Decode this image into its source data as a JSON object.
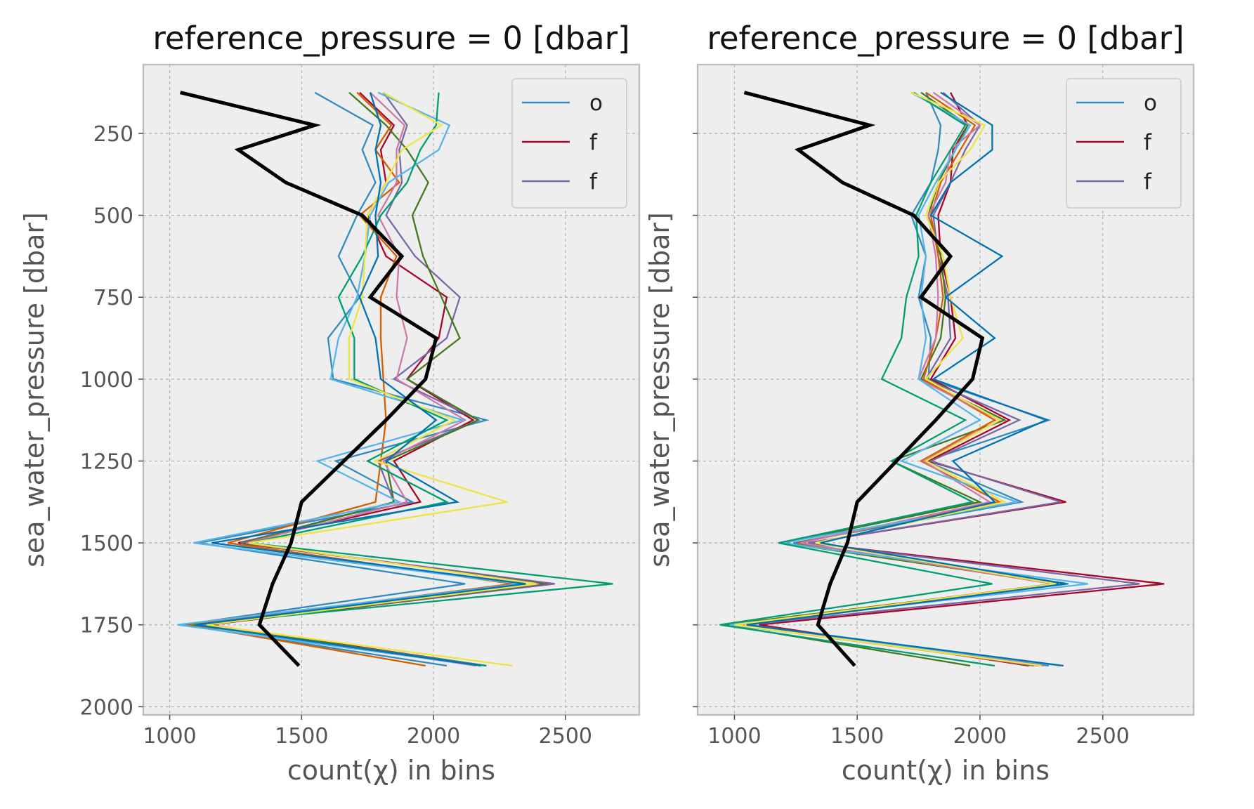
{
  "chart_data": [
    {
      "type": "line",
      "title": "reference_pressure = 0 [dbar]",
      "xlabel": "count(χ) in bins",
      "ylabel": "sea_water_pressure [dbar]",
      "xlim": [
        900,
        2780
      ],
      "ylim": [
        2025,
        40
      ],
      "y_inverted": true,
      "x_ticks": [
        1000,
        1500,
        2000,
        2500
      ],
      "y_ticks": [
        250,
        500,
        750,
        1000,
        1250,
        1500,
        1750,
        2000
      ],
      "y_tick_labels_visible": true,
      "grid": true,
      "legend_placement": "top-right",
      "legend": [
        {
          "label": "o",
          "color": "#348abd"
        },
        {
          "label": "f",
          "color": "#a60628"
        },
        {
          "label": "f",
          "color": "#7a68a6"
        }
      ],
      "y": [
        125,
        225,
        300,
        400,
        500,
        625,
        750,
        875,
        1000,
        1125,
        1250,
        1375,
        1500,
        1625,
        1750,
        1875
      ],
      "series": [
        {
          "color": "#348abd",
          "x": [
            1550,
            1770,
            1730,
            1780,
            1710,
            1640,
            1720,
            1600,
            1620,
            2200,
            1630,
            1920,
            1110,
            2120,
            1050,
            2050
          ]
        },
        {
          "color": "#a60628",
          "x": [
            1720,
            1850,
            1800,
            1820,
            1750,
            1820,
            2050,
            2020,
            1900,
            2150,
            1850,
            1950,
            1260,
            2450,
            1150,
            2200
          ]
        },
        {
          "color": "#7a68a6",
          "x": [
            1810,
            1900,
            1870,
            1880,
            1820,
            1930,
            2100,
            2050,
            1850,
            2170,
            1790,
            1850,
            1270,
            2460,
            1120,
            2200
          ]
        },
        {
          "color": "#467821",
          "x": [
            1680,
            1820,
            1900,
            1980,
            1920,
            1960,
            2030,
            2100,
            1900,
            2170,
            1820,
            1850,
            1280,
            2420,
            1140,
            2180
          ]
        },
        {
          "color": "#d55e00",
          "x": [
            1710,
            1840,
            1780,
            1870,
            1720,
            1860,
            1800,
            1800,
            1810,
            1820,
            1800,
            1780,
            1220,
            2300,
            1070,
            1970
          ]
        },
        {
          "color": "#cc79a7",
          "x": [
            1760,
            1890,
            1860,
            1860,
            1790,
            1870,
            1860,
            1900,
            1860,
            2120,
            1810,
            1900,
            1290,
            2400,
            1110,
            2160
          ]
        },
        {
          "color": "#56b4e9",
          "x": [
            1790,
            2060,
            2020,
            1830,
            1760,
            1740,
            1710,
            1640,
            1610,
            2110,
            1560,
            1870,
            1090,
            2330,
            1030,
            2180
          ]
        },
        {
          "color": "#009e73",
          "x": [
            2020,
            2010,
            1950,
            1900,
            1800,
            1730,
            1640,
            1700,
            1700,
            2050,
            1750,
            2050,
            1300,
            2680,
            1090,
            2200
          ]
        },
        {
          "color": "#f0e442",
          "x": [
            1810,
            2030,
            1880,
            1820,
            1750,
            1740,
            1730,
            1680,
            1680,
            2080,
            1780,
            2280,
            1300,
            2390,
            1140,
            2300
          ]
        },
        {
          "color": "#0072b2",
          "x": [
            1760,
            1800,
            1780,
            1800,
            1780,
            1790,
            1720,
            1780,
            1800,
            2010,
            1820,
            2090,
            1160,
            2350,
            1100,
            2180
          ]
        }
      ],
      "highlight": {
        "color": "#000000",
        "y": [
          125,
          225,
          300,
          400,
          500,
          625,
          750,
          875,
          1000,
          1125,
          1250,
          1375,
          1500,
          1625,
          1750,
          1875
        ],
        "x": [
          1040,
          1550,
          1260,
          1440,
          1730,
          1880,
          1760,
          2010,
          1970,
          1820,
          1660,
          1500,
          1460,
          1390,
          1340,
          1490
        ]
      }
    },
    {
      "type": "line",
      "title": "reference_pressure = 0 [dbar]",
      "xlabel": "count(χ) in bins",
      "ylabel": "sea_water_pressure [dbar]",
      "xlim": [
        850,
        2870
      ],
      "ylim": [
        2025,
        40
      ],
      "y_inverted": true,
      "x_ticks": [
        1000,
        1500,
        2000,
        2500
      ],
      "y_ticks": [
        250,
        500,
        750,
        1000,
        1250,
        1500,
        1750,
        2000
      ],
      "y_tick_labels_visible": false,
      "grid": true,
      "legend_placement": "top-right",
      "legend": [
        {
          "label": "o",
          "color": "#348abd"
        },
        {
          "label": "f",
          "color": "#a60628"
        },
        {
          "label": "f",
          "color": "#7a68a6"
        }
      ],
      "y": [
        125,
        225,
        300,
        400,
        500,
        625,
        750,
        875,
        1000,
        1125,
        1250,
        1375,
        1500,
        1625,
        1750,
        1875
      ],
      "series": [
        {
          "color": "#348abd",
          "x": [
            1780,
            1840,
            1830,
            1800,
            1720,
            1780,
            1750,
            1800,
            1790,
            2280,
            1780,
            2170,
            1240,
            2360,
            1000,
            2280
          ]
        },
        {
          "color": "#a60628",
          "x": [
            1880,
            1950,
            1890,
            1880,
            1830,
            1840,
            1880,
            1900,
            1800,
            2120,
            1790,
            2350,
            1300,
            2750,
            1100,
            2200
          ]
        },
        {
          "color": "#7a68a6",
          "x": [
            1850,
            2000,
            1940,
            1880,
            1810,
            1830,
            1870,
            1880,
            1780,
            2160,
            1800,
            2330,
            1300,
            2650,
            1050,
            2220
          ]
        },
        {
          "color": "#467821",
          "x": [
            1760,
            1950,
            1900,
            1830,
            1790,
            1840,
            1860,
            1840,
            1760,
            2100,
            1640,
            2000,
            1200,
            2320,
            960,
            1960
          ]
        },
        {
          "color": "#d55e00",
          "x": [
            1780,
            1980,
            1920,
            1840,
            1800,
            1830,
            1850,
            1820,
            1770,
            2060,
            1760,
            2080,
            1260,
            2300,
            1000,
            2240
          ]
        },
        {
          "color": "#cc79a7",
          "x": [
            1810,
            2000,
            1880,
            1860,
            1790,
            1820,
            1830,
            1820,
            1750,
            2080,
            1770,
            2040,
            1270,
            2300,
            1060,
            2260
          ]
        },
        {
          "color": "#56b4e9",
          "x": [
            1720,
            1960,
            1900,
            1820,
            1750,
            1780,
            1760,
            1780,
            1750,
            2000,
            1680,
            2150,
            1190,
            2440,
            980,
            2330
          ]
        },
        {
          "color": "#009e73",
          "x": [
            1730,
            1940,
            1880,
            1800,
            1740,
            1750,
            1700,
            1680,
            1600,
            1940,
            1640,
            1970,
            1180,
            2050,
            940,
            2060
          ]
        },
        {
          "color": "#f0e442",
          "x": [
            1720,
            2020,
            1960,
            1830,
            1780,
            1850,
            1880,
            1930,
            1780,
            2080,
            1780,
            2100,
            1330,
            2310,
            1000,
            2250
          ]
        },
        {
          "color": "#0072b2",
          "x": [
            1840,
            2050,
            2050,
            1880,
            1800,
            2090,
            1860,
            2060,
            1810,
            2270,
            1890,
            2060,
            1350,
            2350,
            1050,
            2340
          ]
        }
      ],
      "highlight": {
        "color": "#000000",
        "y": [
          125,
          225,
          300,
          400,
          500,
          625,
          750,
          875,
          1000,
          1125,
          1250,
          1375,
          1500,
          1625,
          1750,
          1875
        ],
        "x": [
          1040,
          1550,
          1260,
          1440,
          1730,
          1880,
          1760,
          2010,
          1970,
          1820,
          1660,
          1500,
          1460,
          1390,
          1340,
          1490
        ]
      }
    }
  ]
}
